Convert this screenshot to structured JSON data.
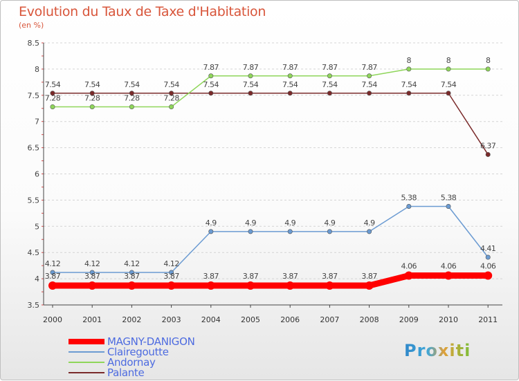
{
  "title": "Evolution du Taux de Taxe d'Habitation",
  "subtitle": "(en %)",
  "logo": "Proxiti",
  "chart_data": {
    "type": "line",
    "title": "Evolution du Taux de Taxe d'Habitation",
    "ylabel": "(en %)",
    "xlabel": "",
    "x": [
      "2000",
      "2001",
      "2002",
      "2003",
      "2004",
      "2005",
      "2006",
      "2007",
      "2008",
      "2009",
      "2010",
      "2011"
    ],
    "ylim": [
      3.5,
      8.5
    ],
    "yticks": [
      "3.5",
      "4",
      "4.5",
      "5",
      "5.5",
      "6",
      "6.5",
      "7",
      "7.5",
      "8",
      "8.5"
    ],
    "grid": "horizontal dashed",
    "legend_position": "bottom-left",
    "series": [
      {
        "name": "MAGNY-DANIGON",
        "color": "#ff0000",
        "values": [
          3.87,
          3.87,
          3.87,
          3.87,
          3.87,
          3.87,
          3.87,
          3.87,
          3.87,
          4.06,
          4.06,
          4.06
        ],
        "labels": [
          "3.87",
          "3.87",
          "3.87",
          "3.87",
          "3.87",
          "3.87",
          "3.87",
          "3.87",
          "3.87",
          "4.06",
          "4.06",
          "4.06"
        ]
      },
      {
        "name": "Clairegoutte",
        "color": "#6b9bd2",
        "values": [
          4.12,
          4.12,
          4.12,
          4.12,
          4.9,
          4.9,
          4.9,
          4.9,
          4.9,
          5.38,
          5.38,
          4.41
        ],
        "labels": [
          "4.12",
          "4.12",
          "4.12",
          "4.12",
          "4.9",
          "4.9",
          "4.9",
          "4.9",
          "4.9",
          "5.38",
          "5.38",
          "4.41"
        ]
      },
      {
        "name": "Andornay",
        "color": "#8fd65a",
        "values": [
          7.28,
          7.28,
          7.28,
          7.28,
          7.87,
          7.87,
          7.87,
          7.87,
          7.87,
          8,
          8,
          8
        ],
        "labels": [
          "7.28",
          "7.28",
          "7.28",
          "7.28",
          "7.87",
          "7.87",
          "7.87",
          "7.87",
          "7.87",
          "8",
          "8",
          "8"
        ]
      },
      {
        "name": "Palante",
        "color": "#7a2a2a",
        "values": [
          7.54,
          7.54,
          7.54,
          7.54,
          7.54,
          7.54,
          7.54,
          7.54,
          7.54,
          7.54,
          7.54,
          6.37
        ],
        "labels": [
          "7.54",
          "7.54",
          "7.54",
          "7.54",
          "7.54",
          "7.54",
          "7.54",
          "7.54",
          "7.54",
          "7.54",
          "7.54",
          "6.37"
        ]
      }
    ]
  }
}
